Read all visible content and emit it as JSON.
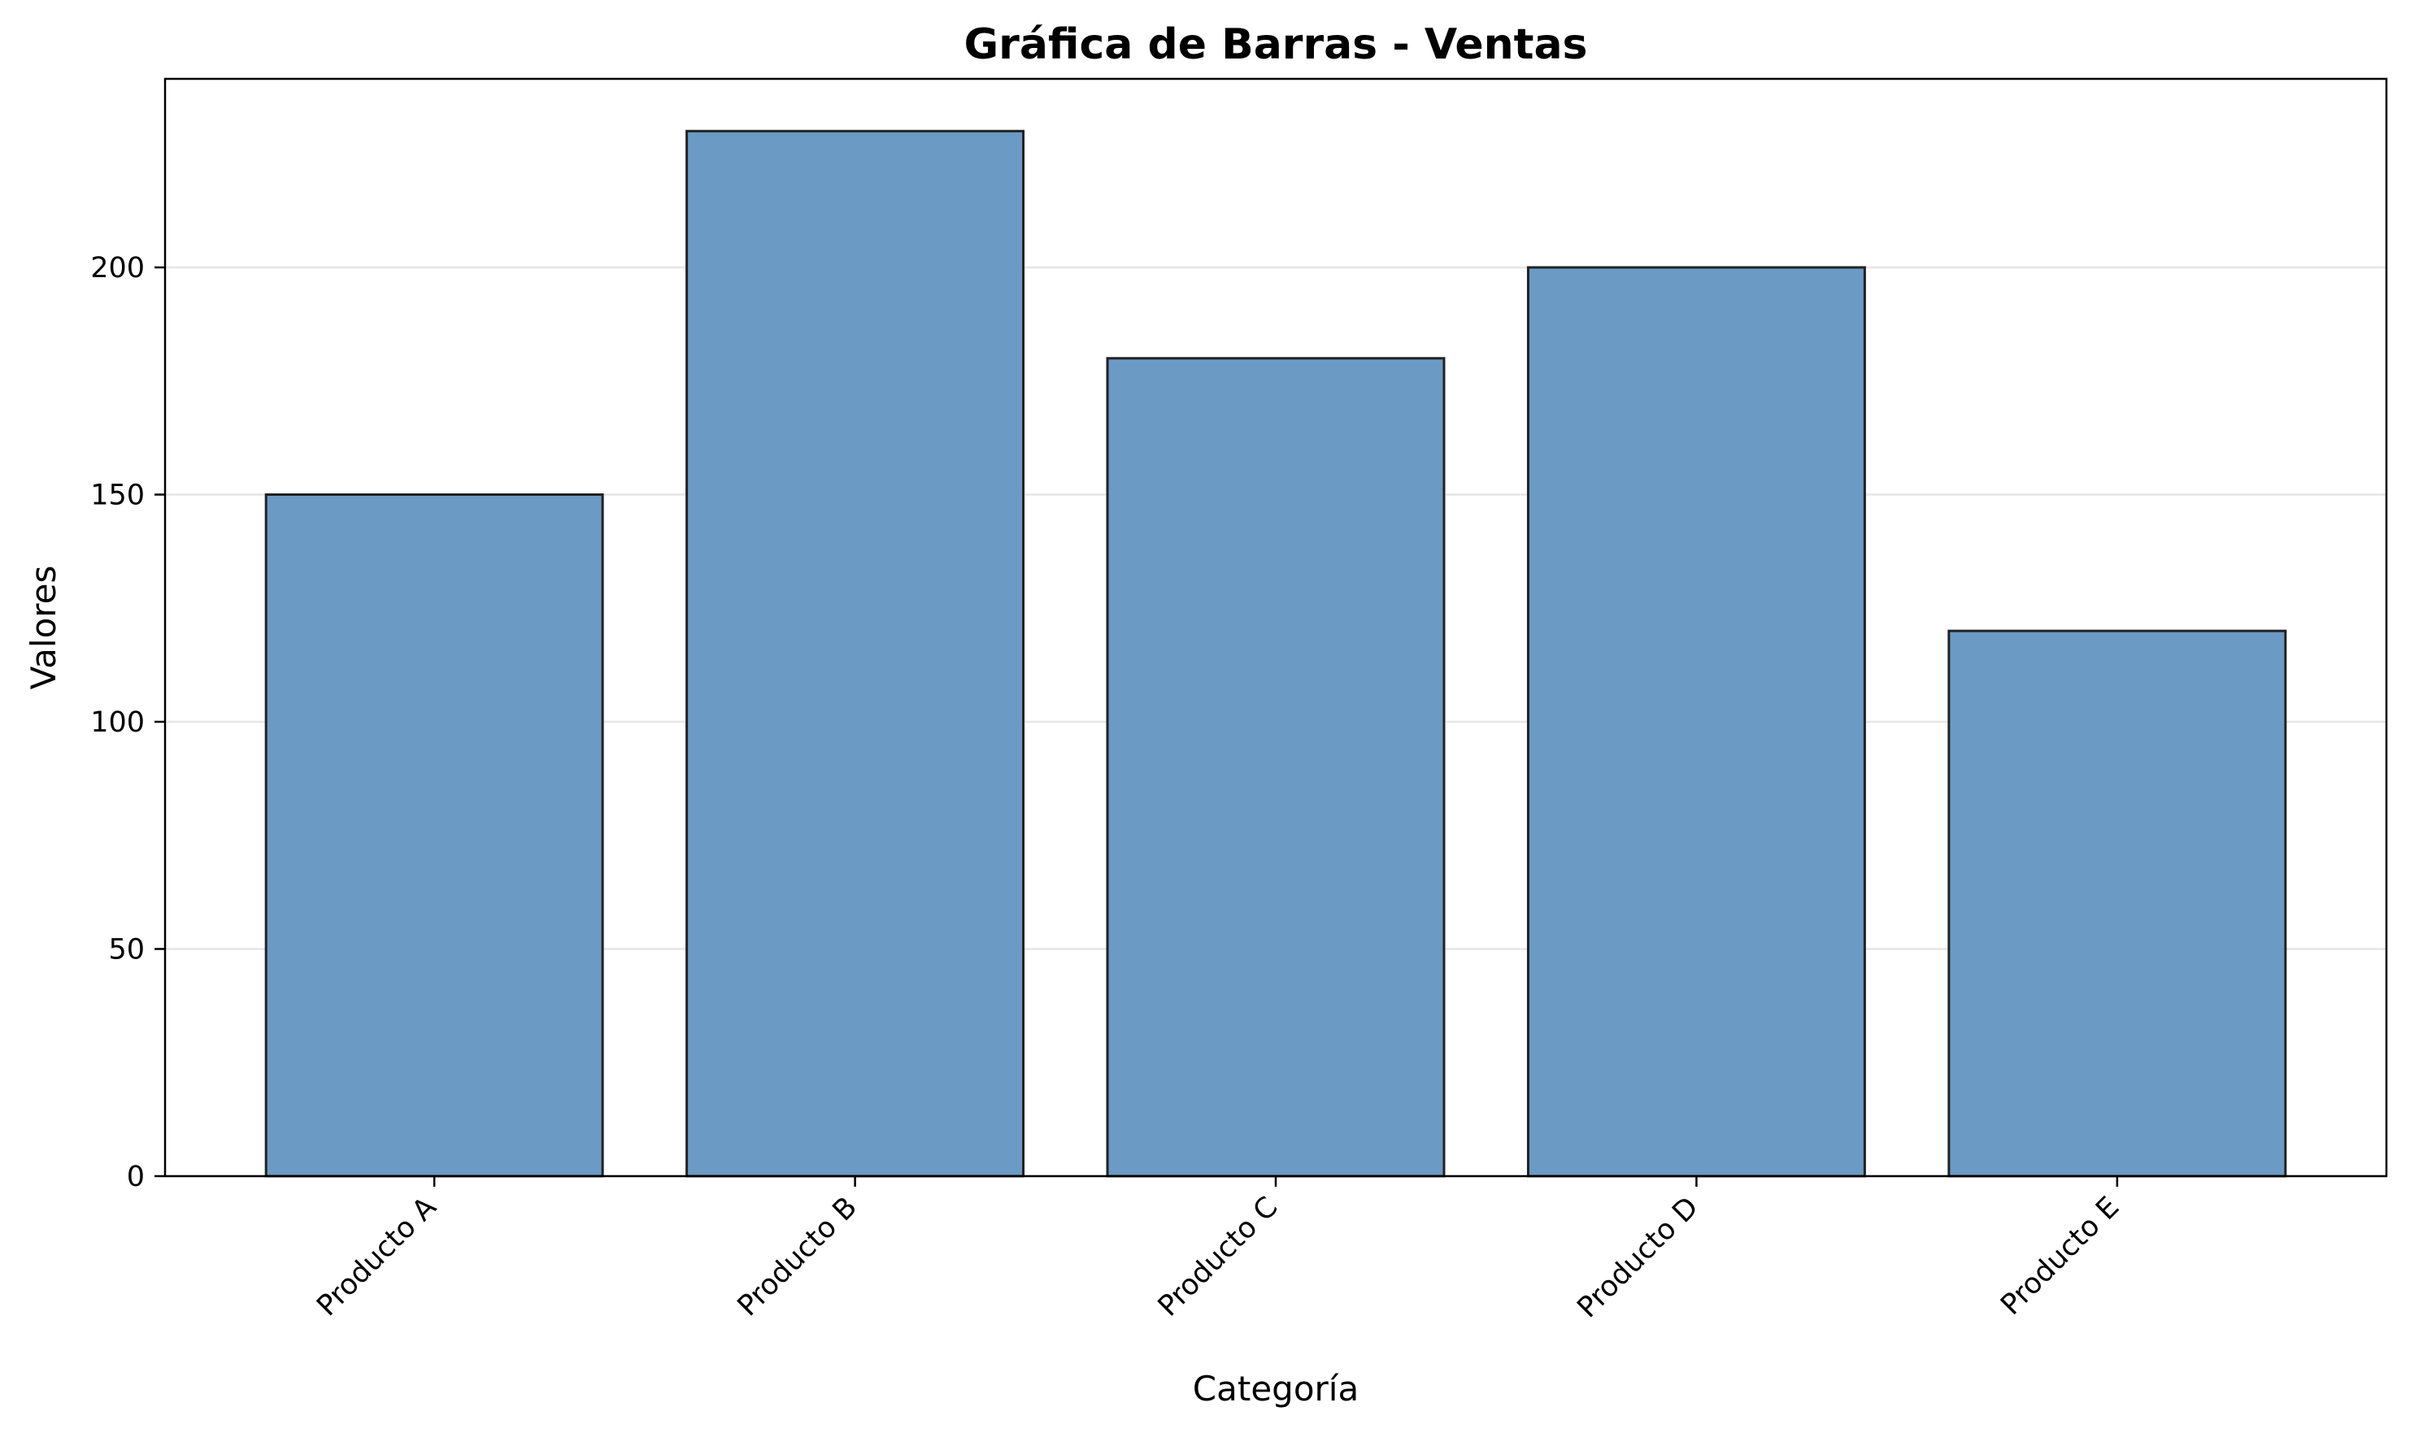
{
  "chart_data": {
    "type": "bar",
    "title": "Gráfica de Barras - Ventas",
    "xlabel": "Categoría",
    "ylabel": "Valores",
    "categories": [
      "Producto A",
      "Producto B",
      "Producto C",
      "Producto D",
      "Producto E"
    ],
    "values": [
      150,
      230,
      180,
      200,
      120
    ],
    "ylim": [
      0,
      241.5
    ],
    "yticks": [
      0,
      50,
      100,
      150,
      200
    ],
    "grid": "y-axis only",
    "legend": "none",
    "bar_color": "#6b9ac4",
    "bar_edge_color": "#222222",
    "grid_color": "#e6e6e6"
  }
}
